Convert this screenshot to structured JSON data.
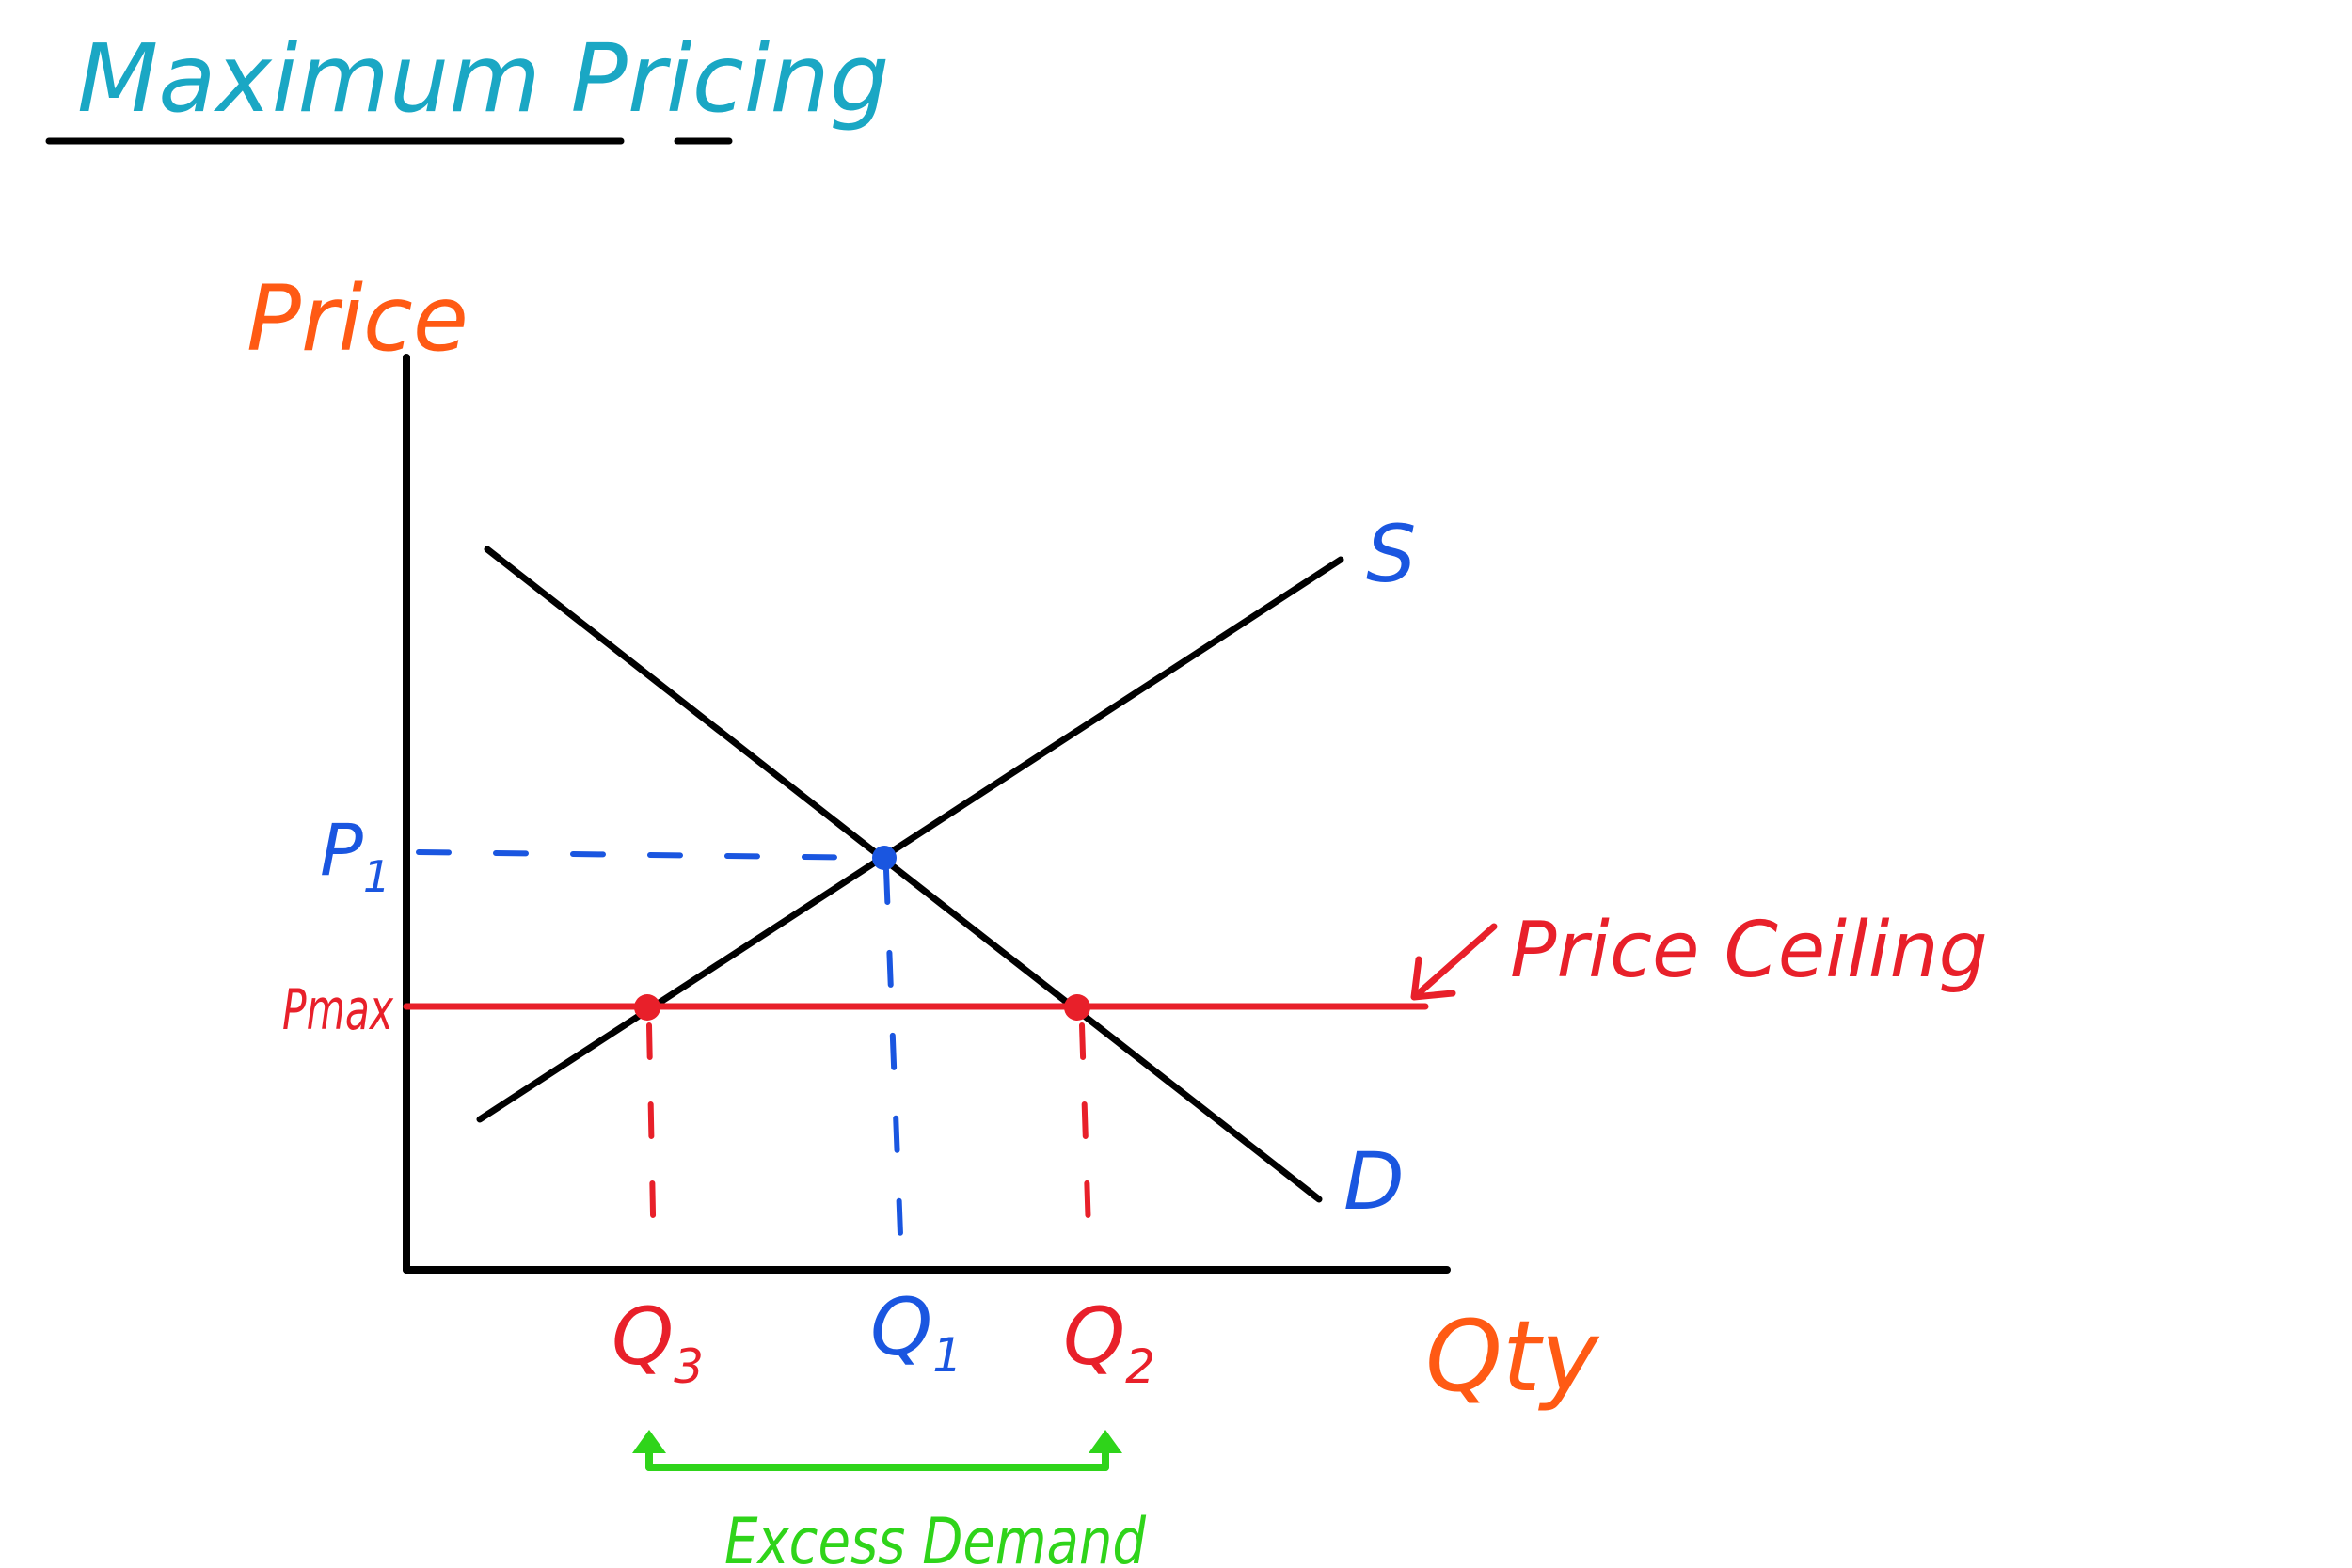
{
  "title": "Maximum Pricing",
  "axes": {
    "y_label": "Price",
    "x_label": "Qty"
  },
  "curves": {
    "supply_label": "S",
    "demand_label": "D"
  },
  "price_labels": {
    "p1": "P",
    "p1_sub": "1",
    "pmax": "Pmax"
  },
  "price_ceiling_label": "Price Ceiling",
  "quantity_labels": {
    "q3": "Q",
    "q3_sub": "3",
    "q1": "Q",
    "q1_sub": "1",
    "q2": "Q",
    "q2_sub": "2"
  },
  "excess_demand_label": "Excess Demand",
  "colors": {
    "title": "#1aa7c4",
    "axis_labels": "#ff5a14",
    "equilibrium": "#1a56e0",
    "ceiling": "#e8202a",
    "excess": "#2fd41a",
    "lines": "#000000"
  }
}
